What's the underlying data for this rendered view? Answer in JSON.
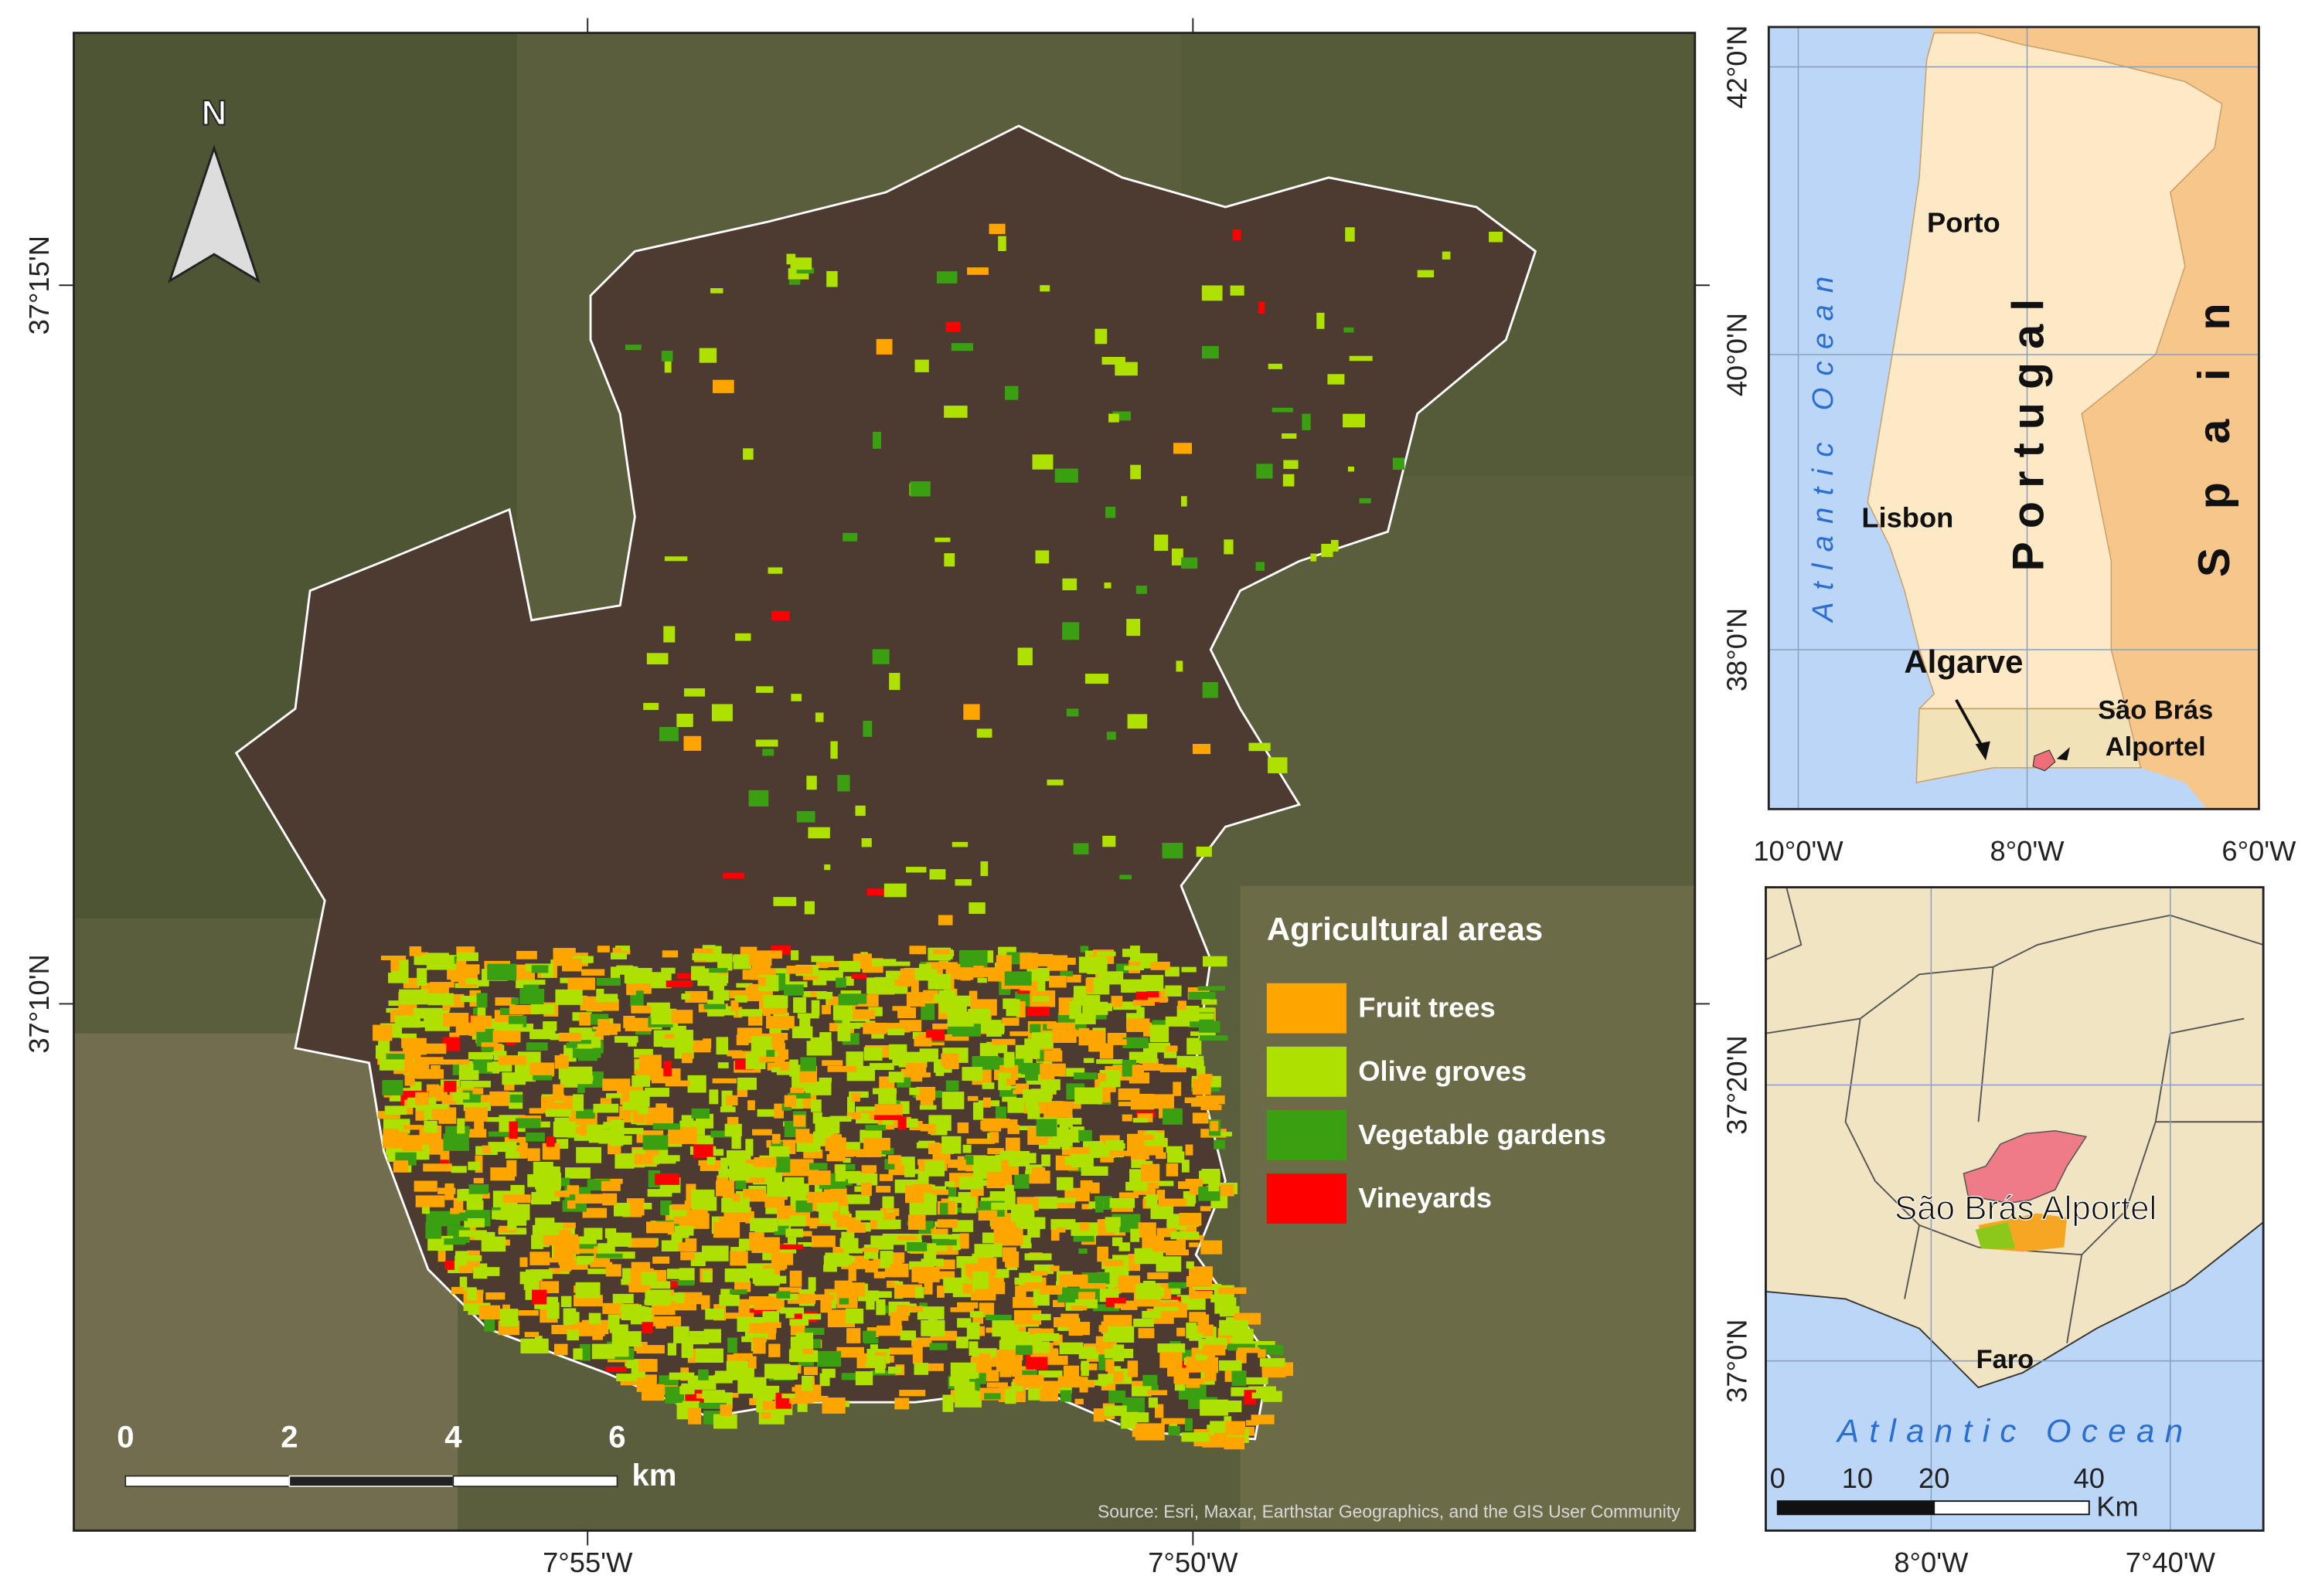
{
  "main_map": {
    "north_label": "N",
    "x_ticks": [
      "7°55'W",
      "7°50'W"
    ],
    "y_ticks": [
      "37°15'N",
      "37°10'N"
    ],
    "legend": {
      "title": "Agricultural areas",
      "items": [
        {
          "label": "Fruit trees",
          "color": "#ffa500"
        },
        {
          "label": "Olive groves",
          "color": "#aee000"
        },
        {
          "label": "Vegetable gardens",
          "color": "#3aa012"
        },
        {
          "label": "Vineyards",
          "color": "#ff0000"
        }
      ]
    },
    "scale_bar": {
      "labels": [
        "0",
        "2",
        "4",
        "6"
      ],
      "unit": "km"
    },
    "source": "Source: Esri, Maxar, Earthstar Geographics, and the GIS User Community"
  },
  "inset_portugal": {
    "x_ticks": [
      "10°0'W",
      "8°0'W",
      "6°0'W"
    ],
    "y_ticks": [
      "42°0'N",
      "40°0'N",
      "38°0'N"
    ],
    "labels": {
      "ocean": "Atlantic Ocean",
      "porto": "Porto",
      "lisbon": "Lisbon",
      "portugal": "Portugal",
      "spain": "Spain",
      "algarve": "Algarve",
      "municipality_line1": "São Brás",
      "municipality_line2": "Alportel"
    }
  },
  "inset_algarve": {
    "x_ticks": [
      "8°0'W",
      "7°40'W"
    ],
    "y_ticks": [
      "37°20'N",
      "37°0'N"
    ],
    "labels": {
      "municipality": "São Brás Alportel",
      "faro": "Faro",
      "ocean": "Atlantic Ocean"
    },
    "scale_bar": {
      "labels": [
        "0",
        "10",
        "20",
        "40"
      ],
      "unit": "Km"
    }
  }
}
